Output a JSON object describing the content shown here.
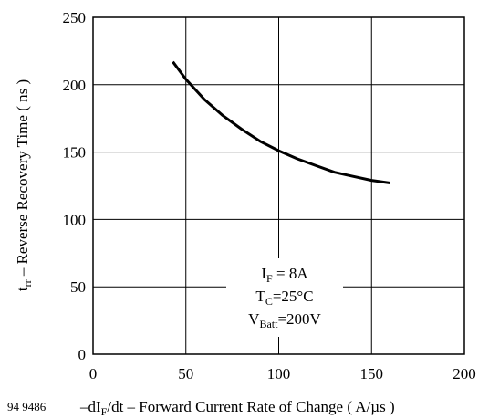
{
  "figure_code": "94 9486",
  "chart_data": {
    "type": "line",
    "xlabel": {
      "prefix": "–dI",
      "sub": "F",
      "suffix": "/dt – Forward Current Rate of Change ( A/µs )"
    },
    "ylabel": {
      "prefix": "t",
      "sub": "rr",
      "suffix": " – Reverse Recovery Time ( ns )"
    },
    "xlim": [
      0,
      200
    ],
    "ylim": [
      0,
      250
    ],
    "x_ticks": [
      0,
      50,
      100,
      150,
      200
    ],
    "y_ticks": [
      0,
      50,
      100,
      150,
      200,
      250
    ],
    "x_tick_labels": [
      "0",
      "50",
      "100",
      "150",
      "200"
    ],
    "y_tick_labels": [
      "0",
      "50",
      "100",
      "150",
      "200",
      "250"
    ],
    "grid": true,
    "series": [
      {
        "x": [
          43,
          50,
          60,
          70,
          80,
          90,
          100,
          110,
          120,
          130,
          140,
          150,
          160
        ],
        "y": [
          217,
          204,
          189,
          177,
          167,
          158,
          151,
          145,
          140,
          135,
          132,
          129,
          127
        ]
      }
    ],
    "annotation": [
      {
        "prefix": "I",
        "sub": "F",
        "suffix": " = 8A"
      },
      {
        "prefix": "T",
        "sub": "C",
        "suffix": "=25°C"
      },
      {
        "prefix": "V",
        "sub": "Batt",
        "suffix": "=200V"
      }
    ]
  }
}
